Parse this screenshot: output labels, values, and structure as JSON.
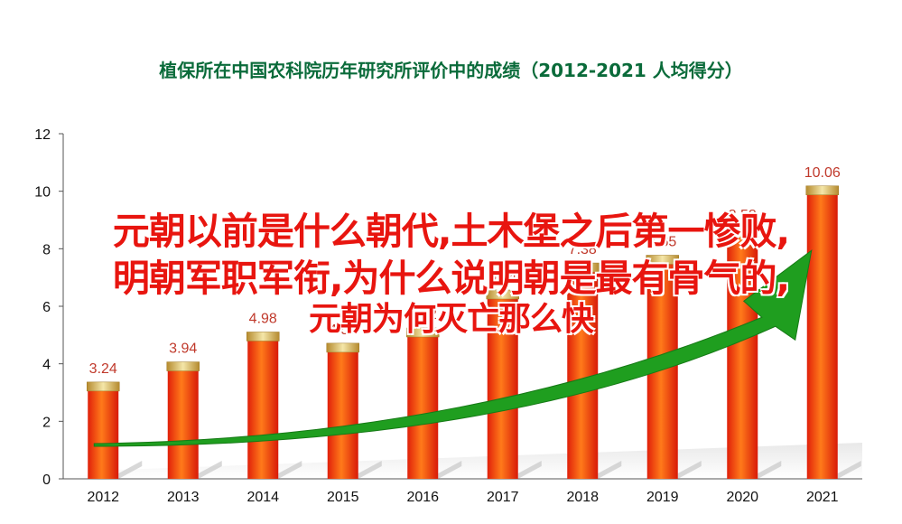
{
  "chart_data": {
    "type": "bar",
    "title": "植保所在中国农科院历年研究所评价中的成绩（2012-2021  人均得分）",
    "categories": [
      "2012",
      "2013",
      "2014",
      "2015",
      "2016",
      "2017",
      "2018",
      "2019",
      "2020",
      "2021"
    ],
    "values": [
      3.24,
      3.94,
      4.98,
      4.59,
      5.12,
      6.44,
      7.38,
      7.65,
      8.58,
      10.06
    ],
    "value_labels": [
      "3.24",
      "3.94",
      "4.98",
      "4.59",
      "5.12",
      "6.44",
      "7.38",
      "7.65",
      "8.58",
      "10.06"
    ],
    "yticks": [
      "0",
      "2",
      "4",
      "6",
      "8",
      "10",
      "12"
    ],
    "ylim": [
      0,
      12
    ],
    "xlabel": "",
    "ylabel": "",
    "grid": false,
    "bar_color": "#f03a10",
    "arrow_color": "#1f9e1f"
  },
  "overlay": {
    "line1": "元朝以前是什么朝代,土木堡之后第一惨败,",
    "line2": "明朝军职军衔,为什么说明朝是最有骨气的,",
    "line3": "元朝为何灭亡那么快"
  }
}
